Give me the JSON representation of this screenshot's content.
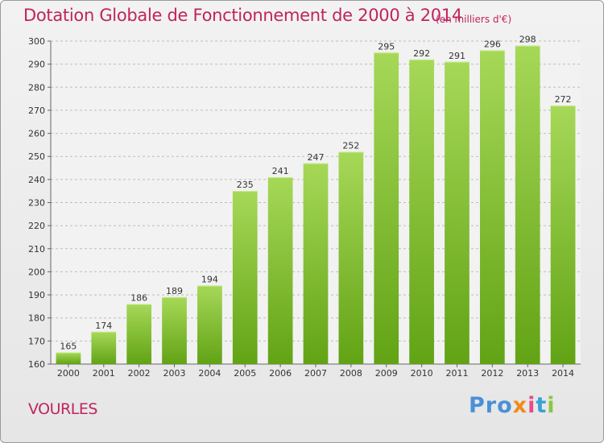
{
  "header": {
    "title": "Dotation Globale de Fonctionnement de 2000 à 2014",
    "unit": "(en milliers d'€)"
  },
  "footer": {
    "town": "VOURLES",
    "logo": [
      "Pro",
      "x",
      "i",
      "t",
      "i"
    ]
  },
  "colors": {
    "title": "#c0245e",
    "bar_light": "#a6d858",
    "bar_dark": "#62a315",
    "grid": "#bdbdbd"
  },
  "chart_data": {
    "type": "bar",
    "title": "Dotation Globale de Fonctionnement de 2000 à 2014",
    "xlabel": "",
    "ylabel": "",
    "categories": [
      "2000",
      "2001",
      "2002",
      "2003",
      "2004",
      "2005",
      "2006",
      "2007",
      "2008",
      "2009",
      "2010",
      "2011",
      "2012",
      "2013",
      "2014"
    ],
    "values": [
      165,
      174,
      186,
      189,
      194,
      235,
      241,
      247,
      252,
      295,
      292,
      291,
      296,
      298,
      272
    ],
    "ylim": [
      160,
      300
    ],
    "yticks": [
      160,
      170,
      180,
      190,
      200,
      210,
      220,
      230,
      240,
      250,
      260,
      270,
      280,
      290,
      300
    ],
    "grid": true,
    "data_labels": true
  }
}
